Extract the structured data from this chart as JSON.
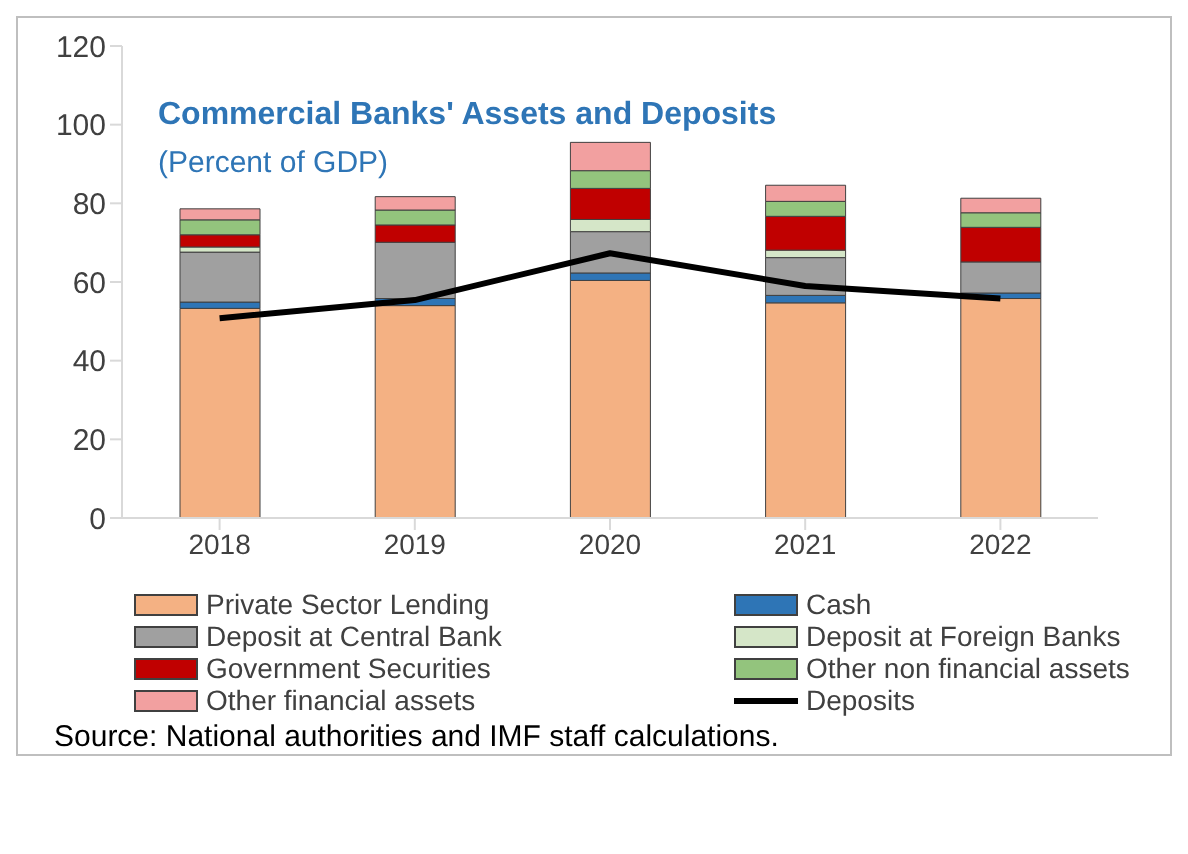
{
  "chart_data": {
    "type": "bar",
    "title": "Commercial Banks' Assets and Deposits",
    "subtitle": "(Percent of GDP)",
    "categories": [
      "2018",
      "2019",
      "2020",
      "2021",
      "2022"
    ],
    "stacked": true,
    "series": [
      {
        "name": "Private Sector Lending",
        "color": "#f4b183",
        "values": [
          53.3,
          54.0,
          60.4,
          54.7,
          55.8
        ]
      },
      {
        "name": "Cash",
        "color": "#2e75b6",
        "values": [
          1.6,
          1.8,
          1.9,
          1.9,
          1.4
        ]
      },
      {
        "name": "Deposit at Central Bank",
        "color": "#a0a0a0",
        "values": [
          12.7,
          14.3,
          10.5,
          9.6,
          7.9
        ]
      },
      {
        "name": "Deposit at Foreign Banks",
        "color": "#d5e6c8",
        "values": [
          1.3,
          null,
          3.1,
          1.9,
          null
        ]
      },
      {
        "name": "Government Securities",
        "color": "#c00000",
        "values": [
          3.1,
          4.4,
          7.9,
          8.6,
          8.8
        ]
      },
      {
        "name": "Other non financial assets",
        "color": "#93c47d",
        "values": [
          3.8,
          3.8,
          4.5,
          3.8,
          3.7
        ]
      },
      {
        "name": "Other financial assets",
        "color": "#f2a0a0",
        "values": [
          2.8,
          3.4,
          7.2,
          4.1,
          3.7
        ]
      },
      {
        "name": "Deposits",
        "type": "line",
        "color": "#000000",
        "values": [
          50.8,
          55.4,
          67.3,
          59.0,
          55.8
        ]
      }
    ],
    "ylim": [
      0,
      120
    ],
    "yticks": [
      0,
      20,
      40,
      60,
      80,
      100,
      120
    ],
    "grid": false,
    "legend": "bottom",
    "annotations": [
      "Source: National authorities and IMF staff calculations."
    ]
  }
}
